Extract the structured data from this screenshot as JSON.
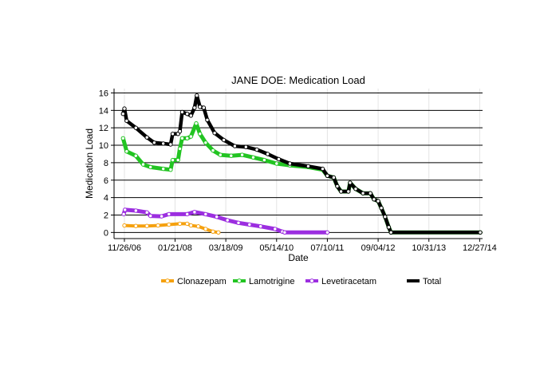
{
  "chart_data": {
    "type": "line",
    "title": "JANE DOE: Medication Load",
    "xlabel": "Date",
    "ylabel": "Medication Load",
    "x_ticks": [
      "11/26/06",
      "01/21/08",
      "03/18/09",
      "05/14/10",
      "07/10/11",
      "09/04/12",
      "10/31/13",
      "12/27/14"
    ],
    "xlim": [
      "2006-09-01",
      "2015-01-20"
    ],
    "y_ticks": [
      0,
      2,
      4,
      6,
      8,
      10,
      12,
      14,
      16
    ],
    "ylim": [
      -0.7,
      16.5
    ],
    "grid": "horizontal major",
    "legend_position": "bottom",
    "series": [
      {
        "name": "Clonazepam",
        "color": "#f5a10f",
        "points": [
          [
            "2006-11-26",
            0.8
          ],
          [
            "2007-03-01",
            0.75
          ],
          [
            "2007-06-01",
            0.75
          ],
          [
            "2007-09-01",
            0.8
          ],
          [
            "2007-12-01",
            0.9
          ],
          [
            "2008-03-01",
            1.0
          ],
          [
            "2008-05-01",
            1.0
          ],
          [
            "2008-06-01",
            0.8
          ],
          [
            "2008-08-01",
            0.7
          ],
          [
            "2008-10-01",
            0.4
          ],
          [
            "2008-12-01",
            0.1
          ],
          [
            "2009-01-15",
            0.0
          ]
        ]
      },
      {
        "name": "Lamotrigine",
        "color": "#22c422",
        "points": [
          [
            "2006-11-15",
            10.8
          ],
          [
            "2006-12-15",
            9.3
          ],
          [
            "2007-03-01",
            8.8
          ],
          [
            "2007-05-01",
            7.8
          ],
          [
            "2007-07-01",
            7.5
          ],
          [
            "2007-10-15",
            7.3
          ],
          [
            "2007-12-15",
            7.2
          ],
          [
            "2008-01-01",
            8.3
          ],
          [
            "2008-02-15",
            8.3
          ],
          [
            "2008-03-01",
            9.6
          ],
          [
            "2008-03-20",
            10.8
          ],
          [
            "2008-05-01",
            10.8
          ],
          [
            "2008-06-01",
            11.0
          ],
          [
            "2008-07-15",
            12.5
          ],
          [
            "2008-08-15",
            11.3
          ],
          [
            "2008-10-01",
            10.3
          ],
          [
            "2008-12-01",
            9.4
          ],
          [
            "2009-02-01",
            8.9
          ],
          [
            "2009-05-01",
            8.8
          ],
          [
            "2009-08-01",
            8.9
          ],
          [
            "2009-11-01",
            8.6
          ],
          [
            "2010-02-01",
            8.3
          ],
          [
            "2010-05-14",
            7.9
          ],
          [
            "2010-09-01",
            7.7
          ],
          [
            "2011-02-01",
            7.5
          ],
          [
            "2011-06-01",
            7.2
          ],
          [
            "2011-07-10",
            6.5
          ],
          [
            "2011-09-01",
            6.3
          ],
          [
            "2011-10-01",
            5.3
          ],
          [
            "2011-11-01",
            4.7
          ],
          [
            "2012-01-01",
            4.7
          ],
          [
            "2012-01-15",
            5.7
          ],
          [
            "2012-03-01",
            5.0
          ],
          [
            "2012-05-01",
            4.5
          ],
          [
            "2012-07-01",
            4.5
          ],
          [
            "2012-08-01",
            3.8
          ],
          [
            "2012-09-04",
            3.6
          ],
          [
            "2012-10-01",
            2.8
          ],
          [
            "2012-11-01",
            1.8
          ],
          [
            "2012-12-01",
            0.6
          ],
          [
            "2012-12-20",
            0.0
          ],
          [
            "2015-01-01",
            0.0
          ]
        ]
      },
      {
        "name": "Levetiracetam",
        "color": "#9c2ee0",
        "points": [
          [
            "2006-11-20",
            2.1
          ],
          [
            "2006-12-01",
            2.6
          ],
          [
            "2007-03-01",
            2.5
          ],
          [
            "2007-06-01",
            2.3
          ],
          [
            "2007-07-01",
            1.9
          ],
          [
            "2007-10-01",
            1.85
          ],
          [
            "2007-12-01",
            2.1
          ],
          [
            "2008-05-01",
            2.1
          ],
          [
            "2008-07-01",
            2.35
          ],
          [
            "2008-10-01",
            2.1
          ],
          [
            "2009-01-01",
            1.8
          ],
          [
            "2009-04-01",
            1.4
          ],
          [
            "2009-07-01",
            1.1
          ],
          [
            "2009-10-01",
            0.9
          ],
          [
            "2010-01-01",
            0.7
          ],
          [
            "2010-05-01",
            0.4
          ],
          [
            "2010-07-01",
            0.1
          ],
          [
            "2010-07-20",
            0.0
          ],
          [
            "2011-07-10",
            0.0
          ]
        ]
      },
      {
        "name": "Total",
        "color": "#000000",
        "points": [
          [
            "2006-11-15",
            13.6
          ],
          [
            "2006-11-26",
            14.2
          ],
          [
            "2006-12-15",
            12.8
          ],
          [
            "2007-03-01",
            12.0
          ],
          [
            "2007-06-01",
            10.9
          ],
          [
            "2007-08-01",
            10.3
          ],
          [
            "2007-10-15",
            10.2
          ],
          [
            "2007-12-15",
            10.1
          ],
          [
            "2008-01-01",
            11.3
          ],
          [
            "2008-02-15",
            11.3
          ],
          [
            "2008-03-01",
            11.6
          ],
          [
            "2008-03-20",
            13.8
          ],
          [
            "2008-05-01",
            13.6
          ],
          [
            "2008-06-01",
            13.4
          ],
          [
            "2008-07-01",
            14.3
          ],
          [
            "2008-07-20",
            15.7
          ],
          [
            "2008-08-15",
            14.4
          ],
          [
            "2008-09-15",
            14.3
          ],
          [
            "2008-10-15",
            12.9
          ],
          [
            "2008-12-15",
            11.4
          ],
          [
            "2009-03-01",
            10.6
          ],
          [
            "2009-06-01",
            9.9
          ],
          [
            "2009-09-01",
            9.8
          ],
          [
            "2009-12-01",
            9.5
          ],
          [
            "2010-03-01",
            9.0
          ],
          [
            "2010-06-01",
            8.4
          ],
          [
            "2010-09-01",
            7.9
          ],
          [
            "2011-02-01",
            7.6
          ],
          [
            "2011-06-01",
            7.3
          ],
          [
            "2011-07-10",
            6.5
          ],
          [
            "2011-09-01",
            6.3
          ],
          [
            "2011-10-01",
            5.3
          ],
          [
            "2011-11-01",
            4.7
          ],
          [
            "2012-01-01",
            4.7
          ],
          [
            "2012-01-15",
            5.7
          ],
          [
            "2012-03-01",
            5.0
          ],
          [
            "2012-05-01",
            4.5
          ],
          [
            "2012-07-01",
            4.5
          ],
          [
            "2012-08-01",
            3.8
          ],
          [
            "2012-09-04",
            3.6
          ],
          [
            "2012-10-01",
            2.8
          ],
          [
            "2012-11-01",
            1.8
          ],
          [
            "2012-12-01",
            0.6
          ],
          [
            "2012-12-20",
            0.0
          ],
          [
            "2015-01-01",
            0.0
          ]
        ]
      }
    ]
  }
}
